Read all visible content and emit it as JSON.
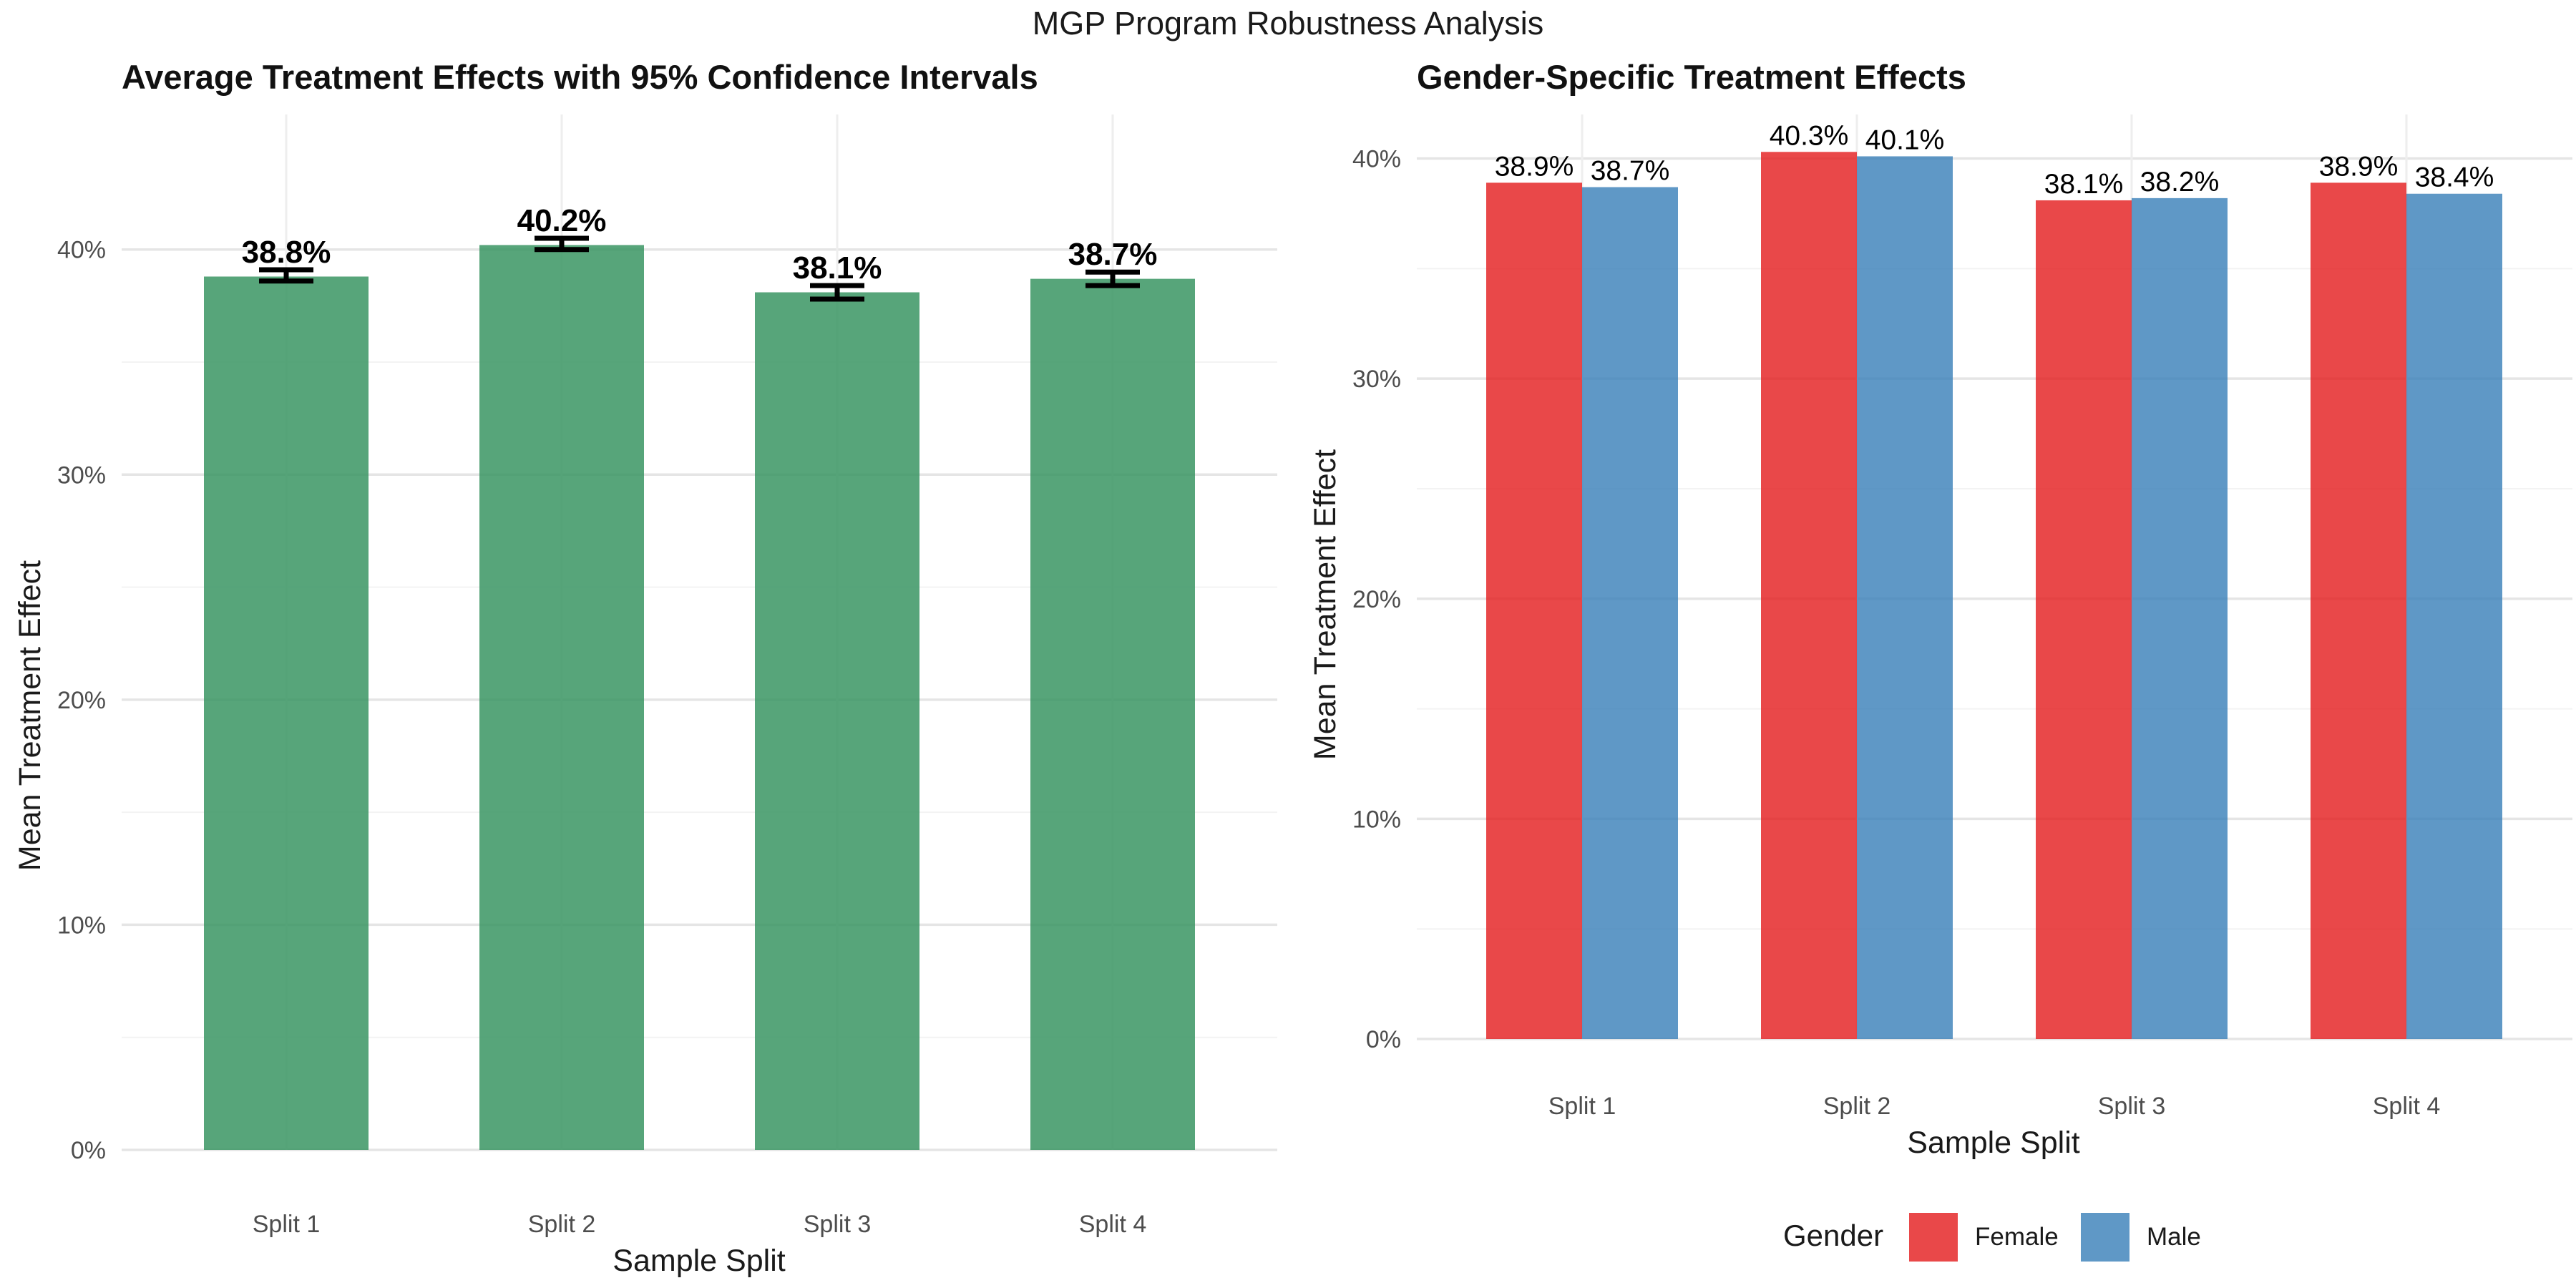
{
  "suptitle": "MGP Program Robustness Analysis",
  "colors": {
    "overall": "#3a9563",
    "female": "#e41a1c",
    "male": "#377eb8"
  },
  "chart_data": [
    {
      "type": "bar",
      "title": "Average Treatment Effects with 95% Confidence Intervals",
      "xlabel": "Sample Split",
      "ylabel": "Mean Treatment Effect",
      "categories": [
        "Split 1",
        "Split 2",
        "Split 3",
        "Split 4"
      ],
      "values": [
        0.388,
        0.402,
        0.381,
        0.387
      ],
      "ci_lower": [
        0.386,
        0.4,
        0.378,
        0.384
      ],
      "ci_upper": [
        0.391,
        0.405,
        0.384,
        0.39
      ],
      "value_labels": [
        "38.8%",
        "40.2%",
        "38.1%",
        "38.7%"
      ],
      "ylim": [
        0,
        0.46
      ],
      "yticks": [
        0,
        0.1,
        0.2,
        0.3,
        0.4
      ],
      "ytick_labels": [
        "0%",
        "10%",
        "20%",
        "30%",
        "40%"
      ],
      "grid": true
    },
    {
      "type": "bar",
      "title": "Gender-Specific Treatment Effects",
      "xlabel": "Sample Split",
      "ylabel": "Mean Treatment Effect",
      "categories": [
        "Split 1",
        "Split 2",
        "Split 3",
        "Split 4"
      ],
      "series": [
        {
          "name": "Female",
          "values": [
            0.389,
            0.403,
            0.381,
            0.389
          ],
          "labels": [
            "38.9%",
            "40.3%",
            "38.1%",
            "38.9%"
          ]
        },
        {
          "name": "Male",
          "values": [
            0.387,
            0.401,
            0.382,
            0.384
          ],
          "labels": [
            "38.7%",
            "40.1%",
            "38.2%",
            "38.4%"
          ]
        }
      ],
      "ylim": [
        0,
        0.42
      ],
      "yticks": [
        0,
        0.1,
        0.2,
        0.3,
        0.4
      ],
      "ytick_labels": [
        "0%",
        "10%",
        "20%",
        "30%",
        "40%"
      ],
      "legend_title": "Gender",
      "legend_position": "bottom",
      "grid": true
    }
  ]
}
